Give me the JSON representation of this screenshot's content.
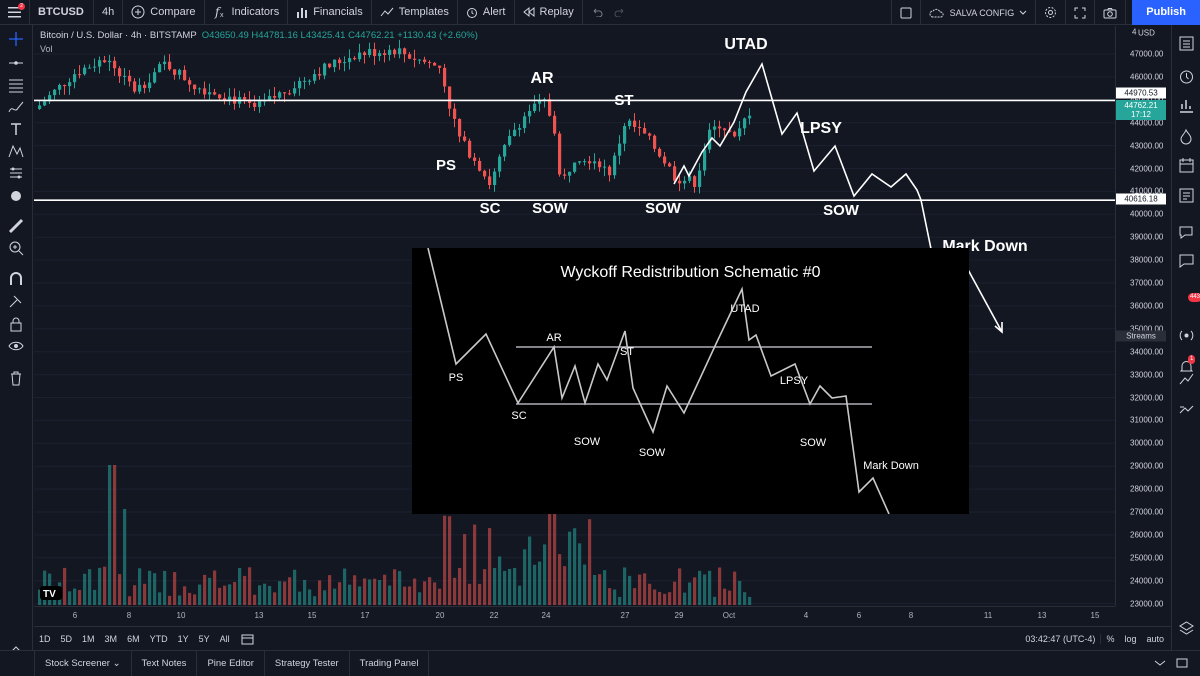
{
  "toolbar": {
    "menu_badge": "2",
    "symbol": "BTCUSD",
    "interval": "4h",
    "compare": "Compare",
    "indicators": "Indicators",
    "financials": "Financials",
    "templates": "Templates",
    "alert": "Alert",
    "replay": "Replay",
    "layout_name": "SALVA CONFIG",
    "publish": "Publish"
  },
  "legend": {
    "symbol_desc": "Bitcoin / U.S. Dollar",
    "interval": "4h",
    "exchange": "BITSTAMP",
    "ohlc": "O43650.49 H44781.16 L43425.41 C44762.21 +1130.43 (+2.60%)",
    "volume_label": "Vol"
  },
  "price_axis": {
    "currency": "USD",
    "top_label": "4",
    "ticks": [
      "47000.00",
      "46000.00",
      "45000.00",
      "44000.00",
      "43000.00",
      "42000.00",
      "41000.00",
      "40000.00",
      "39000.00",
      "38000.00",
      "37000.00",
      "36000.00",
      "35000.00",
      "34000.00",
      "33000.00",
      "32000.00",
      "31000.00",
      "30000.00",
      "29000.00",
      "28000.00",
      "27000.00",
      "26000.00",
      "25000.00",
      "24000.00",
      "23000.00"
    ],
    "resistance_label": "44970.53",
    "current_price": "44762.21",
    "countdown": "17:12",
    "support_label": "40616.18",
    "streams": "Streams"
  },
  "time_axis": [
    "6",
    "8",
    "10",
    "13",
    "15",
    "17",
    "20",
    "22",
    "24",
    "27",
    "29",
    "Oct",
    "4",
    "6",
    "8",
    "11",
    "13",
    "15"
  ],
  "date_ranges": [
    "1D",
    "5D",
    "1M",
    "3M",
    "6M",
    "YTD",
    "1Y",
    "5Y",
    "All"
  ],
  "clock": "03:42:47 (UTC-4)",
  "scale_options": [
    "%",
    "log",
    "auto"
  ],
  "bottom_tabs": [
    "Stock Screener",
    "Text Notes",
    "Pine Editor",
    "Strategy Tester",
    "Trading Panel"
  ],
  "annotations": {
    "utad": "UTAD",
    "ar": "AR",
    "st": "ST",
    "lpsy": "LPSY",
    "ps": "PS",
    "sc": "SC",
    "sow1": "SOW",
    "sow2": "SOW",
    "sow3": "SOW",
    "markdown": "Mark Down"
  },
  "schematic": {
    "title": "Wyckoff Redistribution Schematic #0",
    "labels": {
      "ps": "PS",
      "sc": "SC",
      "ar": "AR",
      "sow1": "SOW",
      "st": "ST",
      "sow2": "SOW",
      "utad": "UTAD",
      "lpsy": "LPSY",
      "sow3": "SOW",
      "markdown": "Mark Down"
    }
  },
  "right_badges": {
    "chat": "443",
    "alerts": "1"
  },
  "colors": {
    "up": "#26a69a",
    "down": "#ef5350",
    "background": "#131722",
    "publish": "#2962ff"
  }
}
